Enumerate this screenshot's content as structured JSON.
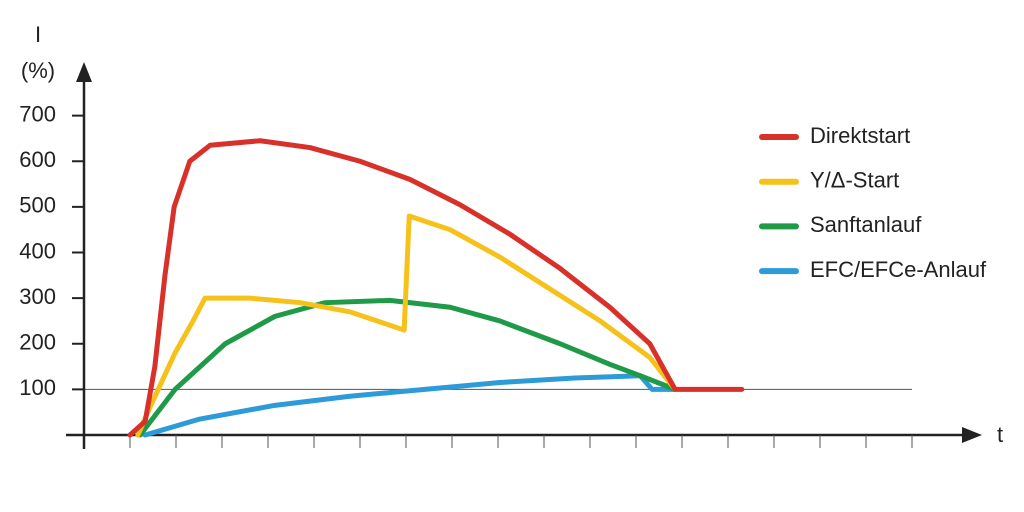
{
  "chart_data": {
    "type": "line",
    "y_label_symbol": "I",
    "y_label_unit": "(%)",
    "x_label": "t",
    "ylim": [
      0,
      800
    ],
    "yticks": [
      100,
      200,
      300,
      400,
      500,
      600,
      700
    ],
    "xlim": [
      0,
      19.5
    ],
    "reference_line": 100,
    "series": [
      {
        "name": "Direktstart",
        "color": "#d8312a",
        "x": [
          1.0,
          1.33,
          1.54,
          1.76,
          1.96,
          2.3,
          2.74,
          3.83,
          4.91,
          6.0,
          7.09,
          8.17,
          9.26,
          10.35,
          11.43,
          12.3,
          12.85,
          14.3
        ],
        "values": [
          0,
          30,
          150,
          350,
          500,
          600,
          635,
          645,
          630,
          600,
          560,
          505,
          440,
          365,
          280,
          200,
          100,
          100
        ]
      },
      {
        "name": "Y/Δ-Start",
        "color": "#f5c11a",
        "x": [
          1.17,
          1.43,
          1.98,
          2.37,
          2.63,
          3.61,
          4.7,
          5.78,
          6.96,
          7.07,
          7.96,
          9.04,
          10.13,
          11.22,
          12.3,
          12.85
        ],
        "values": [
          0,
          60,
          180,
          250,
          300,
          300,
          290,
          270,
          230,
          480,
          450,
          390,
          320,
          250,
          170,
          100
        ]
      },
      {
        "name": "Sanftanlauf",
        "color": "#1f9a48",
        "x": [
          1.22,
          1.98,
          3.07,
          4.15,
          5.24,
          6.65,
          7.96,
          9.04,
          10.35,
          11.43,
          12.09,
          12.85
        ],
        "values": [
          0,
          100,
          200,
          260,
          290,
          295,
          280,
          250,
          200,
          155,
          130,
          100
        ]
      },
      {
        "name": "EFC/EFCe-Anlauf",
        "color": "#2d9bd7",
        "x": [
          1.33,
          2.52,
          4.15,
          5.78,
          7.41,
          9.04,
          10.67,
          12.09,
          12.35,
          12.85
        ],
        "values": [
          0,
          35,
          65,
          85,
          100,
          115,
          125,
          130,
          100,
          100
        ]
      }
    ]
  }
}
